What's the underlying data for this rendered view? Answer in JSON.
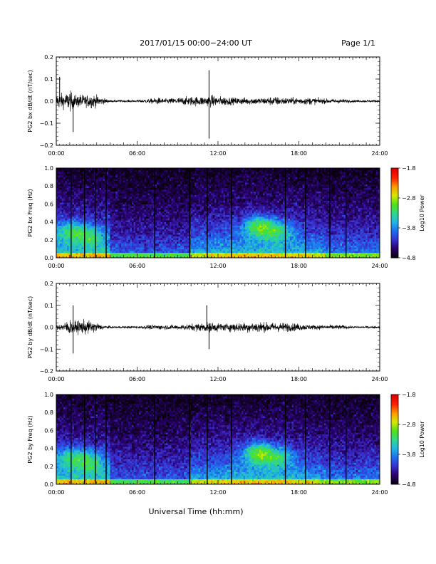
{
  "header": {
    "title": "2017/01/15  00:00−24:00 UT",
    "page": "Page 1/1"
  },
  "footer": {
    "xlabel": "Universal Time (hh:mm)"
  },
  "colors": {
    "trace": "#000000",
    "colormap": [
      "#0a0010",
      "#2a0070",
      "#3a30d0",
      "#1e6ef0",
      "#20b8e0",
      "#30d888",
      "#50e020",
      "#d8e800",
      "#ff9a00",
      "#ff2000",
      "#e00000"
    ]
  },
  "chart_data": [
    {
      "type": "line",
      "ylabel": "PG2 bx dB/dt (nT/sec)",
      "xlim": [
        "00:00",
        "24:00"
      ],
      "x_ticks": [
        "00:00",
        "06:00",
        "12:00",
        "18:00",
        "24:00"
      ],
      "ylim": [
        -0.2,
        0.2
      ],
      "y_ticks": [
        "0.2",
        "0.1",
        "0.0",
        "−0.1",
        "−0.2"
      ],
      "series": [
        {
          "envelope_hours": [
            0,
            0.3,
            0.6,
            1.0,
            1.4,
            1.8,
            2.2,
            2.6,
            3.0,
            3.4,
            4.0,
            5.0,
            6.0,
            7.0,
            7.5,
            8.0,
            9.0,
            10.0,
            11.0,
            11.5,
            12.0,
            12.5,
            13.0,
            14.0,
            15.0,
            15.5,
            16.0,
            17.0,
            18.0,
            19.0,
            20.0,
            21.0,
            22.0,
            23.0,
            24.0
          ],
          "amplitude": [
            0.06,
            0.07,
            0.06,
            0.09,
            0.05,
            0.06,
            0.05,
            0.06,
            0.05,
            0.03,
            0.01,
            0.01,
            0.01,
            0.02,
            0.03,
            0.02,
            0.03,
            0.04,
            0.04,
            0.05,
            0.04,
            0.04,
            0.03,
            0.03,
            0.03,
            0.03,
            0.04,
            0.03,
            0.03,
            0.03,
            0.02,
            0.02,
            0.01,
            0.01,
            0.01
          ],
          "spikes": [
            {
              "time": "00:15",
              "value": 0.11
            },
            {
              "time": "01:15",
              "value": -0.14
            },
            {
              "time": "11:20",
              "value": 0.14
            },
            {
              "time": "11:20",
              "value": -0.17
            }
          ]
        }
      ]
    },
    {
      "type": "heatmap",
      "ylabel": "PG2 bx Freq (Hz)",
      "xlim": [
        "00:00",
        "24:00"
      ],
      "x_ticks": [
        "00:00",
        "06:00",
        "12:00",
        "18:00",
        "24:00"
      ],
      "ylim": [
        0.0,
        1.0
      ],
      "y_ticks": [
        "1.0",
        "0.8",
        "0.6",
        "0.4",
        "0.2",
        "0.0"
      ],
      "colorbar": {
        "label": "Log10 Power",
        "ticks": [
          "−1.8",
          "−2.8",
          "−3.8",
          "−4.8"
        ],
        "range": [
          -4.8,
          -1.8
        ]
      },
      "vertical_lines_hours": [
        1.1,
        2.1,
        2.9,
        3.7,
        7.3,
        9.9,
        11.2,
        13.0,
        17.0,
        18.5,
        20.3,
        21.5
      ],
      "activity_centers": [
        {
          "time": "01:00",
          "freq": 0.3,
          "level": 0.55
        },
        {
          "time": "02:30",
          "freq": 0.25,
          "level": 0.55
        },
        {
          "time": "15:00",
          "freq": 0.35,
          "level": 0.8
        },
        {
          "time": "16:30",
          "freq": 0.3,
          "level": 0.55
        }
      ]
    },
    {
      "type": "line",
      "ylabel": "PG2 by dB/dt (nT/sec)",
      "xlim": [
        "00:00",
        "24:00"
      ],
      "x_ticks": [
        "00:00",
        "06:00",
        "12:00",
        "18:00",
        "24:00"
      ],
      "ylim": [
        -0.2,
        0.2
      ],
      "y_ticks": [
        "0.2",
        "0.1",
        "0.0",
        "−0.1",
        "−0.2"
      ],
      "series": [
        {
          "envelope_hours": [
            0,
            0.3,
            0.6,
            1.0,
            1.4,
            1.8,
            2.2,
            2.6,
            3.0,
            3.4,
            4.0,
            5.0,
            6.0,
            7.0,
            7.5,
            8.0,
            9.0,
            10.0,
            11.0,
            11.5,
            12.0,
            12.5,
            13.0,
            14.0,
            15.0,
            15.5,
            16.0,
            17.0,
            18.0,
            19.0,
            20.0,
            21.0,
            22.0,
            23.0,
            24.0
          ],
          "amplitude": [
            0.02,
            0.03,
            0.04,
            0.07,
            0.05,
            0.06,
            0.06,
            0.05,
            0.04,
            0.02,
            0.01,
            0.01,
            0.01,
            0.02,
            0.02,
            0.02,
            0.02,
            0.03,
            0.04,
            0.04,
            0.04,
            0.03,
            0.04,
            0.04,
            0.05,
            0.04,
            0.04,
            0.04,
            0.03,
            0.02,
            0.02,
            0.02,
            0.01,
            0.01,
            0.01
          ],
          "spikes": [
            {
              "time": "01:15",
              "value": 0.1
            },
            {
              "time": "01:15",
              "value": -0.12
            },
            {
              "time": "11:10",
              "value": 0.1
            },
            {
              "time": "11:20",
              "value": -0.1
            }
          ]
        }
      ]
    },
    {
      "type": "heatmap",
      "ylabel": "PG2 by Freq (Hz)",
      "xlim": [
        "00:00",
        "24:00"
      ],
      "x_ticks": [
        "00:00",
        "06:00",
        "12:00",
        "18:00",
        "24:00"
      ],
      "ylim": [
        0.0,
        1.0
      ],
      "y_ticks": [
        "1.0",
        "0.8",
        "0.6",
        "0.4",
        "0.2",
        "0.0"
      ],
      "colorbar": {
        "label": "Log10 Power",
        "ticks": [
          "−1.8",
          "−2.8",
          "−3.8",
          "−4.8"
        ],
        "range": [
          -4.8,
          -1.8
        ]
      },
      "vertical_lines_hours": [
        1.1,
        2.1,
        2.9,
        3.7,
        7.3,
        9.9,
        11.2,
        13.0,
        17.0,
        18.5,
        20.3,
        21.5
      ],
      "activity_centers": [
        {
          "time": "01:00",
          "freq": 0.3,
          "level": 0.55
        },
        {
          "time": "02:30",
          "freq": 0.25,
          "level": 0.55
        },
        {
          "time": "15:00",
          "freq": 0.35,
          "level": 0.85
        },
        {
          "time": "16:30",
          "freq": 0.3,
          "level": 0.55
        }
      ]
    }
  ]
}
